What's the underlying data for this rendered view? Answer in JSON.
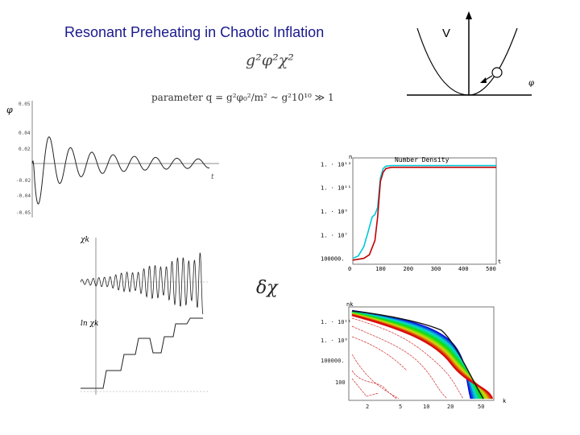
{
  "title": "Resonant Preheating in Chaotic Inflation",
  "formula": "g²φ²χ²",
  "parameter_text": "parameter q = g²φ₀²/m² ~ g²10¹⁰ ≫ 1",
  "delta_chi": "δχ",
  "potential": {
    "v_label": "V",
    "phi_label": "φ"
  },
  "phi_plot": {
    "y_label": "φ",
    "x_label": "t",
    "y_ticks": [
      "0.05",
      "0.04",
      "0.02",
      "-0.02",
      "-0.04",
      "-0.05"
    ]
  },
  "chi_plot": {
    "top_label": "χk",
    "bottom_label": "ln χk"
  },
  "chart_data": [
    {
      "type": "line",
      "title": "Number Density",
      "xlabel": "t",
      "ylabel": "n",
      "x_ticks": [
        "0",
        "100",
        "200",
        "300",
        "400",
        "500"
      ],
      "y_ticks": [
        "100000.",
        "1. · 10⁷",
        "1. · 10⁹",
        "1. · 10¹¹",
        "1. · 10¹³"
      ],
      "xlim": [
        0,
        520
      ],
      "log_y": true,
      "ylim": [
        4.5,
        13.5
      ],
      "series": [
        {
          "color": "#00c8d8",
          "x": [
            0,
            20,
            40,
            55,
            70,
            80,
            90,
            100,
            110,
            120,
            140,
            200,
            300,
            400,
            520
          ],
          "y": [
            5.0,
            5.2,
            6.0,
            7.2,
            8.5,
            8.7,
            9.3,
            11.8,
            12.6,
            12.8,
            12.85,
            12.85,
            12.85,
            12.85,
            12.85
          ]
        },
        {
          "color": "#c00000",
          "x": [
            0,
            40,
            60,
            80,
            90,
            100,
            110,
            120,
            140,
            200,
            300,
            400,
            520
          ],
          "y": [
            4.85,
            5.0,
            5.3,
            6.5,
            8.5,
            11.5,
            12.3,
            12.6,
            12.7,
            12.7,
            12.7,
            12.7,
            12.7
          ]
        }
      ]
    },
    {
      "type": "line",
      "xlabel": "k",
      "ylabel": "nk",
      "x_ticks": [
        "2",
        "5",
        "10",
        "20",
        "50"
      ],
      "y_ticks": [
        "100",
        "100000.",
        "1. · 10⁸",
        "1. · 10¹¹"
      ],
      "log_y": true
    }
  ]
}
